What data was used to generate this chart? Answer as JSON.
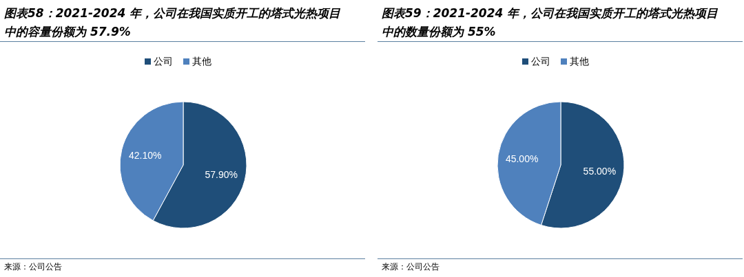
{
  "chart_data": [
    {
      "type": "pie",
      "title": "图表58：2021-2024 年，公司在我国实质开工的塔式光热项目中的容量份额为 57.9%",
      "categories": [
        "公司",
        "其他"
      ],
      "values": [
        57.9,
        42.1
      ],
      "colors": [
        "#1f4e79",
        "#4f81bd"
      ],
      "value_labels": [
        "57.90%",
        "42.10%"
      ],
      "legend": "top",
      "annotations": [
        "来源：公司公告"
      ]
    },
    {
      "type": "pie",
      "title": "图表59：2021-2024 年，公司在我国实质开工的塔式光热项目中的数量份额为 55%",
      "categories": [
        "公司",
        "其他"
      ],
      "values": [
        55,
        45
      ],
      "colors": [
        "#1f4e79",
        "#4f81bd"
      ],
      "value_labels": [
        "55.00%",
        "45.00%"
      ],
      "legend": "top",
      "annotations": [
        "来源：公司公告"
      ]
    }
  ]
}
